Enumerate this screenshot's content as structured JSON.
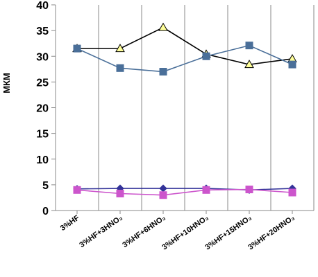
{
  "chart_data": {
    "type": "line",
    "title": "",
    "xlabel": "",
    "ylabel": "МКМ",
    "ylim": [
      0,
      40
    ],
    "yticks": [
      0,
      5,
      10,
      15,
      20,
      25,
      30,
      35,
      40
    ],
    "yticks_labels": [
      "0",
      "5",
      "10",
      "15",
      "20",
      "25",
      "30",
      "35",
      "40"
    ],
    "grid": "vertical",
    "legend": "none",
    "categories": [
      "3%HF",
      "3%HF+3HNO₃",
      "3%HF+6HNO₃",
      "3%HF+10HNO₃",
      "3%HF+15HNO₃",
      "3%HF+20HNO₃"
    ],
    "series": [
      {
        "values": [
          31.5,
          31.5,
          35.6,
          30.4,
          28.4,
          29.5
        ],
        "color": "#000000",
        "marker": "triangle",
        "marker_color": "#ffff99"
      },
      {
        "values": [
          31.5,
          27.7,
          27.0,
          30.0,
          32.1,
          28.4
        ],
        "color": "#4a6f99",
        "marker": "square",
        "marker_color": "#4a6f99"
      },
      {
        "values": [
          4.2,
          4.3,
          4.3,
          4.3,
          4.0,
          4.3
        ],
        "color": "#333399",
        "marker": "diamond",
        "marker_color": "#333399"
      },
      {
        "values": [
          4.0,
          3.3,
          3.0,
          4.0,
          4.1,
          3.5
        ],
        "color": "#cc55cc",
        "marker": "square",
        "marker_color": "#cc55cc"
      }
    ]
  }
}
